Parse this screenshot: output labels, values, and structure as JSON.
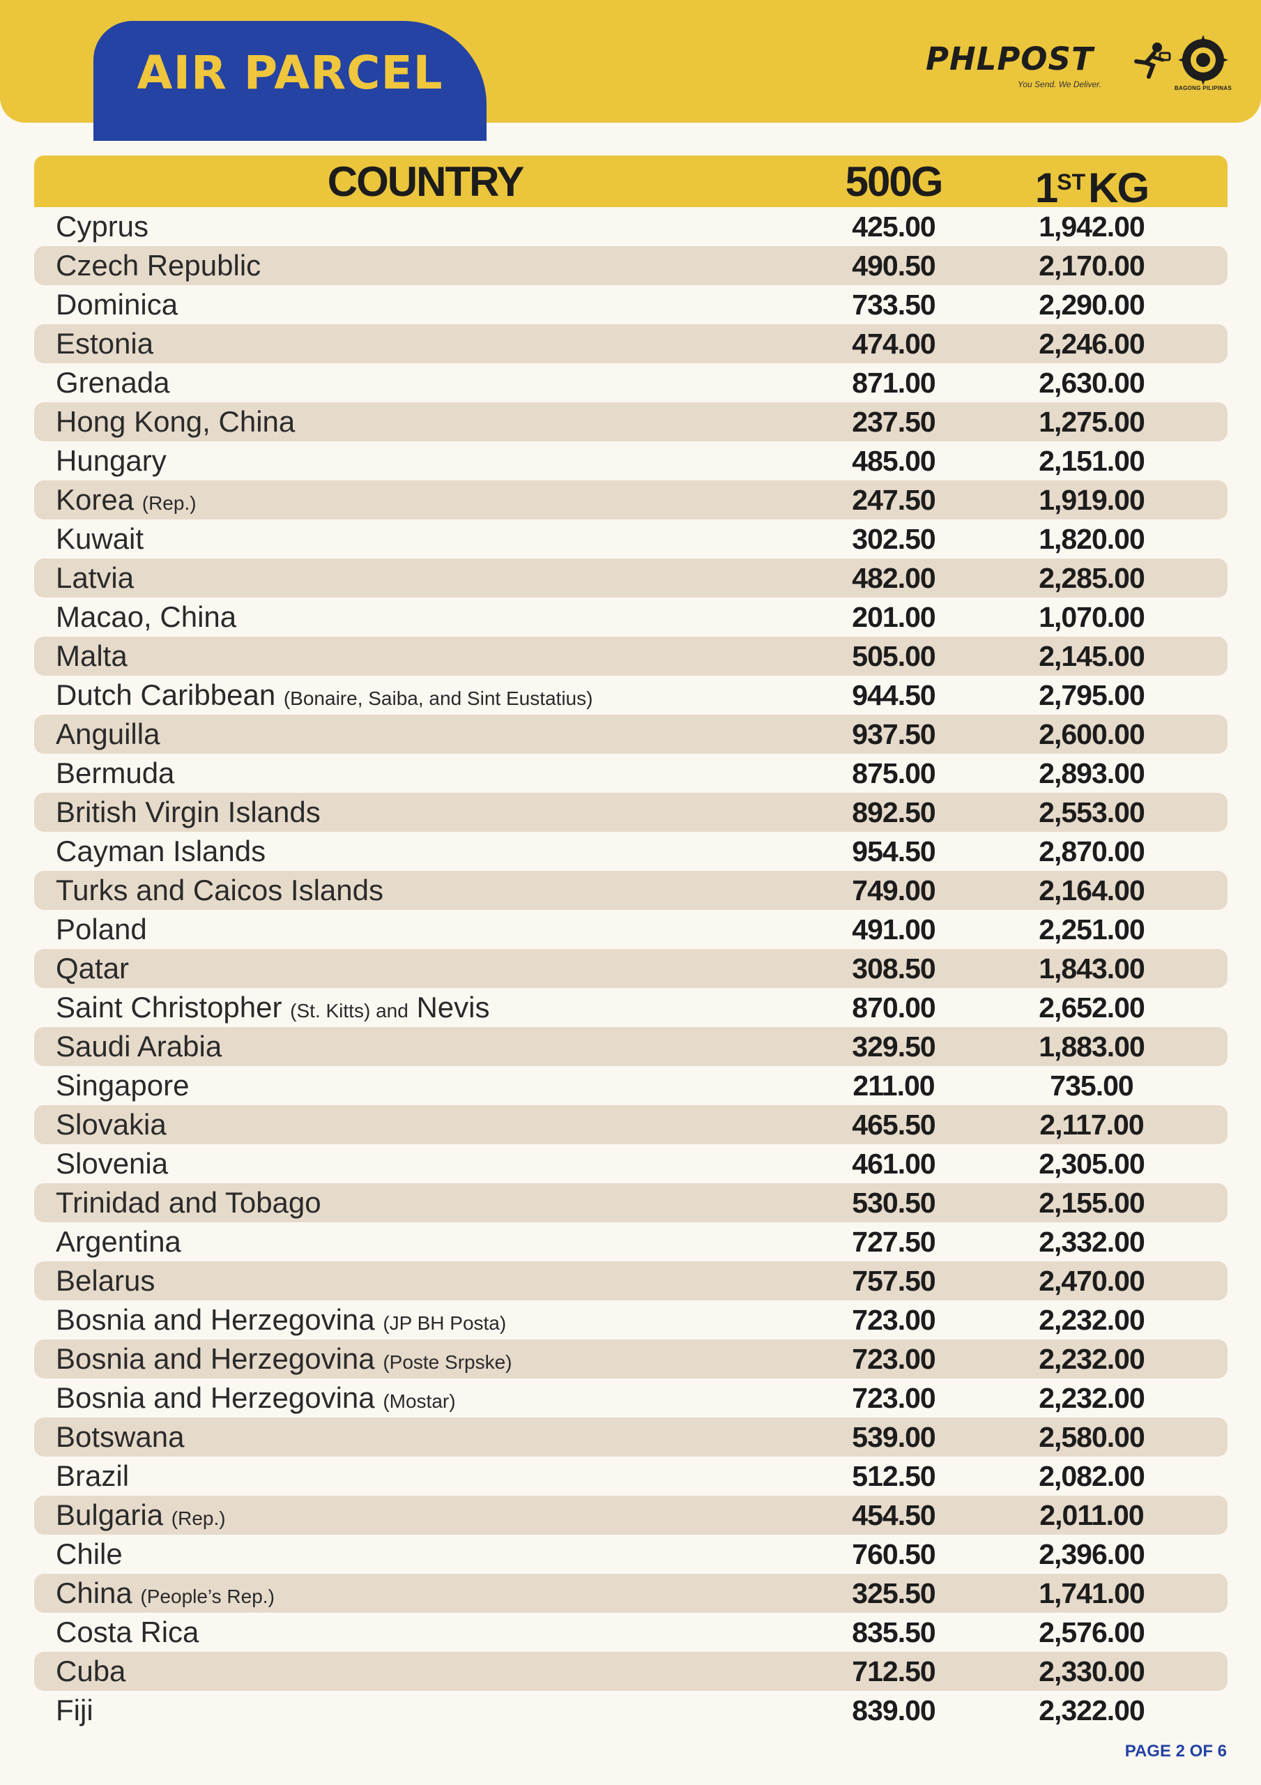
{
  "header": {
    "title": "AIR PARCEL",
    "brand_name": "PHLPOST",
    "brand_tagline": "You Send. We Deliver.",
    "seal_label": "BAGONG PILIPINAS"
  },
  "table": {
    "columns": {
      "country": "COUNTRY",
      "rate_500g": "500G",
      "first_kg_num": "1",
      "first_kg_sup": "ST",
      "first_kg_unit": "KG"
    },
    "rows": [
      {
        "country": "Cyprus",
        "note": "",
        "rate_500g": "425.00",
        "rate_1kg": "1,942.00"
      },
      {
        "country": "Czech Republic",
        "note": "",
        "rate_500g": "490.50",
        "rate_1kg": "2,170.00"
      },
      {
        "country": "Dominica",
        "note": "",
        "rate_500g": "733.50",
        "rate_1kg": "2,290.00"
      },
      {
        "country": "Estonia",
        "note": "",
        "rate_500g": "474.00",
        "rate_1kg": "2,246.00"
      },
      {
        "country": "Grenada",
        "note": "",
        "rate_500g": "871.00",
        "rate_1kg": "2,630.00"
      },
      {
        "country": "Hong Kong, China",
        "note": "",
        "rate_500g": "237.50",
        "rate_1kg": "1,275.00"
      },
      {
        "country": "Hungary",
        "note": "",
        "rate_500g": "485.00",
        "rate_1kg": "2,151.00"
      },
      {
        "country": "Korea",
        "note": "(Rep.)",
        "rate_500g": "247.50",
        "rate_1kg": "1,919.00"
      },
      {
        "country": "Kuwait",
        "note": "",
        "rate_500g": "302.50",
        "rate_1kg": "1,820.00"
      },
      {
        "country": "Latvia",
        "note": "",
        "rate_500g": "482.00",
        "rate_1kg": "2,285.00"
      },
      {
        "country": "Macao, China",
        "note": "",
        "rate_500g": "201.00",
        "rate_1kg": "1,070.00"
      },
      {
        "country": "Malta",
        "note": "",
        "rate_500g": "505.00",
        "rate_1kg": "2,145.00"
      },
      {
        "country": "Dutch Caribbean",
        "note": "(Bonaire, Saiba, and Sint Eustatius)",
        "rate_500g": "944.50",
        "rate_1kg": "2,795.00"
      },
      {
        "country": "Anguilla",
        "note": "",
        "rate_500g": "937.50",
        "rate_1kg": "2,600.00"
      },
      {
        "country": "Bermuda",
        "note": "",
        "rate_500g": "875.00",
        "rate_1kg": "2,893.00"
      },
      {
        "country": "British Virgin Islands",
        "note": "",
        "rate_500g": "892.50",
        "rate_1kg": "2,553.00"
      },
      {
        "country": "Cayman Islands",
        "note": "",
        "rate_500g": "954.50",
        "rate_1kg": "2,870.00"
      },
      {
        "country": "Turks and Caicos Islands",
        "note": "",
        "rate_500g": "749.00",
        "rate_1kg": "2,164.00"
      },
      {
        "country": "Poland",
        "note": "",
        "rate_500g": "491.00",
        "rate_1kg": "2,251.00"
      },
      {
        "country": "Qatar",
        "note": "",
        "rate_500g": "308.50",
        "rate_1kg": "1,843.00"
      },
      {
        "country": "Saint Christopher",
        "note": "(St. Kitts) and",
        "country_suffix": "Nevis",
        "rate_500g": "870.00",
        "rate_1kg": "2,652.00"
      },
      {
        "country": "Saudi Arabia",
        "note": "",
        "rate_500g": "329.50",
        "rate_1kg": "1,883.00"
      },
      {
        "country": "Singapore",
        "note": "",
        "rate_500g": "211.00",
        "rate_1kg": "735.00"
      },
      {
        "country": "Slovakia",
        "note": "",
        "rate_500g": "465.50",
        "rate_1kg": "2,117.00"
      },
      {
        "country": "Slovenia",
        "note": "",
        "rate_500g": "461.00",
        "rate_1kg": "2,305.00"
      },
      {
        "country": "Trinidad and Tobago",
        "note": "",
        "rate_500g": "530.50",
        "rate_1kg": "2,155.00"
      },
      {
        "country": "Argentina",
        "note": "",
        "rate_500g": "727.50",
        "rate_1kg": "2,332.00"
      },
      {
        "country": "Belarus",
        "note": "",
        "rate_500g": "757.50",
        "rate_1kg": "2,470.00"
      },
      {
        "country": "Bosnia and Herzegovina",
        "note": "(JP BH Posta)",
        "rate_500g": "723.00",
        "rate_1kg": "2,232.00"
      },
      {
        "country": "Bosnia and Herzegovina",
        "note": "(Poste Srpske)",
        "rate_500g": "723.00",
        "rate_1kg": "2,232.00"
      },
      {
        "country": "Bosnia and Herzegovina",
        "note": "(Mostar)",
        "rate_500g": "723.00",
        "rate_1kg": "2,232.00"
      },
      {
        "country": "Botswana",
        "note": "",
        "rate_500g": "539.00",
        "rate_1kg": "2,580.00"
      },
      {
        "country": "Brazil",
        "note": "",
        "rate_500g": "512.50",
        "rate_1kg": "2,082.00"
      },
      {
        "country": "Bulgaria",
        "note": "(Rep.)",
        "rate_500g": "454.50",
        "rate_1kg": "2,011.00"
      },
      {
        "country": "Chile",
        "note": "",
        "rate_500g": "760.50",
        "rate_1kg": "2,396.00"
      },
      {
        "country": "China",
        "note": "(People’s Rep.)",
        "rate_500g": "325.50",
        "rate_1kg": "1,741.00"
      },
      {
        "country": "Costa Rica",
        "note": "",
        "rate_500g": "835.50",
        "rate_1kg": "2,576.00"
      },
      {
        "country": "Cuba",
        "note": "",
        "rate_500g": "712.50",
        "rate_1kg": "2,330.00"
      },
      {
        "country": "Fiji",
        "note": "",
        "rate_500g": "839.00",
        "rate_1kg": "2,322.00"
      }
    ]
  },
  "footer": {
    "page_label": "PAGE 2 OF 6"
  },
  "colors": {
    "accent_yellow": "#ebc53c",
    "brand_blue": "#2443a3",
    "row_shade": "#e6dacb",
    "page_background": "#fbf8f2"
  }
}
